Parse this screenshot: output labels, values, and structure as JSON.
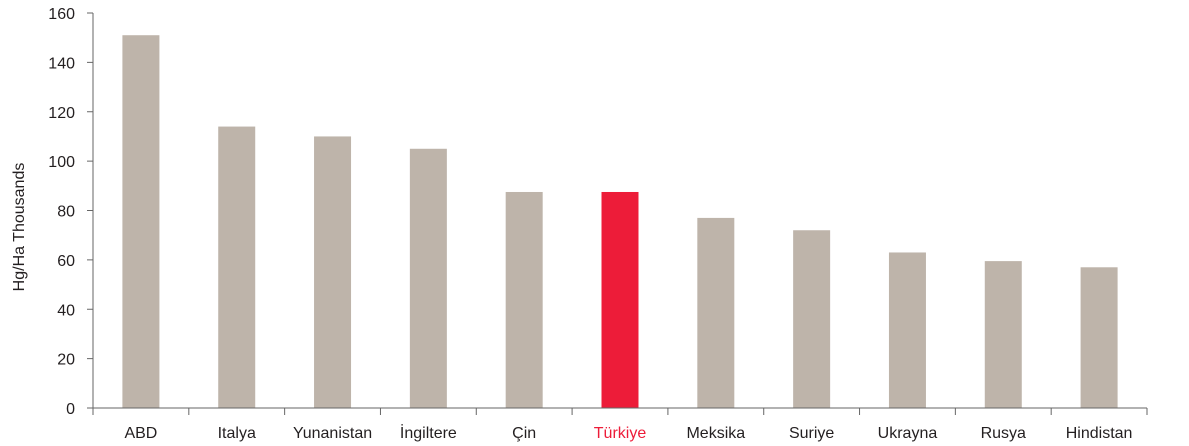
{
  "chart_data": {
    "type": "bar",
    "title": "",
    "xlabel": "",
    "ylabel": "Hg/Ha Thousands",
    "ylim": [
      0,
      160
    ],
    "yticks": [
      0,
      20,
      40,
      60,
      80,
      100,
      120,
      140,
      160
    ],
    "grid": false,
    "categories": [
      "ABD",
      "Italya",
      "Yunanistan",
      "İngiltere",
      "Çin",
      "Türkiye",
      "Meksika",
      "Suriye",
      "Ukrayna",
      "Rusya",
      "Hindistan"
    ],
    "values": [
      151,
      114,
      110,
      105,
      87.5,
      87.5,
      77,
      72,
      63,
      59.5,
      57
    ],
    "highlight": "Türkiye",
    "colors": {
      "bar": "#beb4aa",
      "highlight": "#ed1c39",
      "axis": "#666666",
      "text": "#231f20"
    }
  }
}
